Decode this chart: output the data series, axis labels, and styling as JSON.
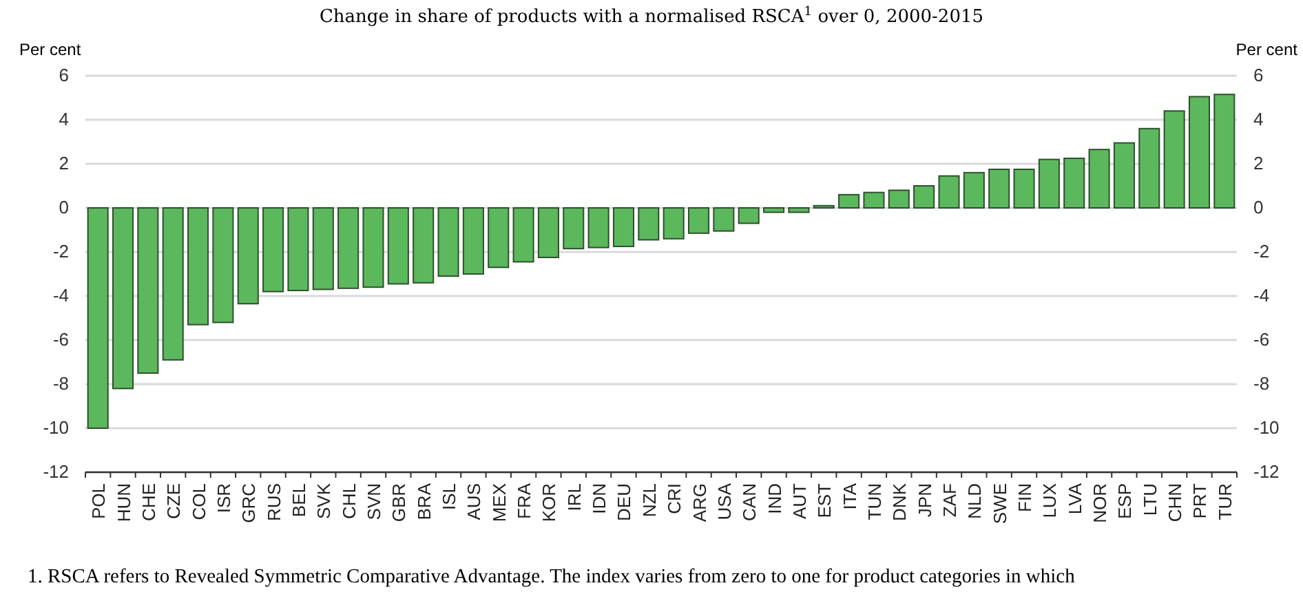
{
  "chart_data": {
    "type": "bar",
    "title": "Change in share of products with a normalised RSCA$^{1}$ over 0, 2000-2015",
    "ylabel": "Per cent",
    "y2label": "Per cent",
    "categories": [
      "POL",
      "HUN",
      "CHE",
      "CZE",
      "COL",
      "ISR",
      "GRC",
      "RUS",
      "BEL",
      "SVK",
      "CHL",
      "SVN",
      "GBR",
      "BRA",
      "ISL",
      "AUS",
      "MEX",
      "FRA",
      "KOR",
      "IRL",
      "IDN",
      "DEU",
      "NZL",
      "CRI",
      "ARG",
      "USA",
      "CAN",
      "IND",
      "AUT",
      "EST",
      "ITA",
      "TUN",
      "DNK",
      "JPN",
      "ZAF",
      "NLD",
      "SWE",
      "FIN",
      "LUX",
      "LVA",
      "NOR",
      "ESP",
      "LTU",
      "CHN",
      "PRT",
      "TUR"
    ],
    "values": [
      -10,
      -8.2,
      -7.5,
      -6.9,
      -5.3,
      -5.2,
      -4.35,
      -3.8,
      -3.75,
      -3.7,
      -3.65,
      -3.6,
      -3.45,
      -3.4,
      -3.1,
      -3.0,
      -2.7,
      -2.45,
      -2.25,
      -1.85,
      -1.8,
      -1.75,
      -1.45,
      -1.4,
      -1.15,
      -1.05,
      -0.7,
      -0.2,
      -0.2,
      0.1,
      0.6,
      0.7,
      0.8,
      1.0,
      1.45,
      1.6,
      1.75,
      1.75,
      2.2,
      2.25,
      2.65,
      2.95,
      3.6,
      4.4,
      5.05,
      5.15
    ],
    "color": "#5cb85c",
    "ylim": [
      -12,
      6
    ],
    "yticks": [
      -12,
      -10,
      -8,
      -6,
      -4,
      -2,
      0,
      2,
      4,
      6
    ],
    "y2lim": [
      -12,
      6
    ],
    "y2ticks": [
      -12,
      -10,
      -8,
      -6,
      -4,
      -2,
      0,
      2,
      4,
      6
    ],
    "grid": "y",
    "annotations": [
      "1. RSCA refers to Revealed Symmetric Comparative Advantage. The index varies from zero to one for product categories in which"
    ]
  }
}
